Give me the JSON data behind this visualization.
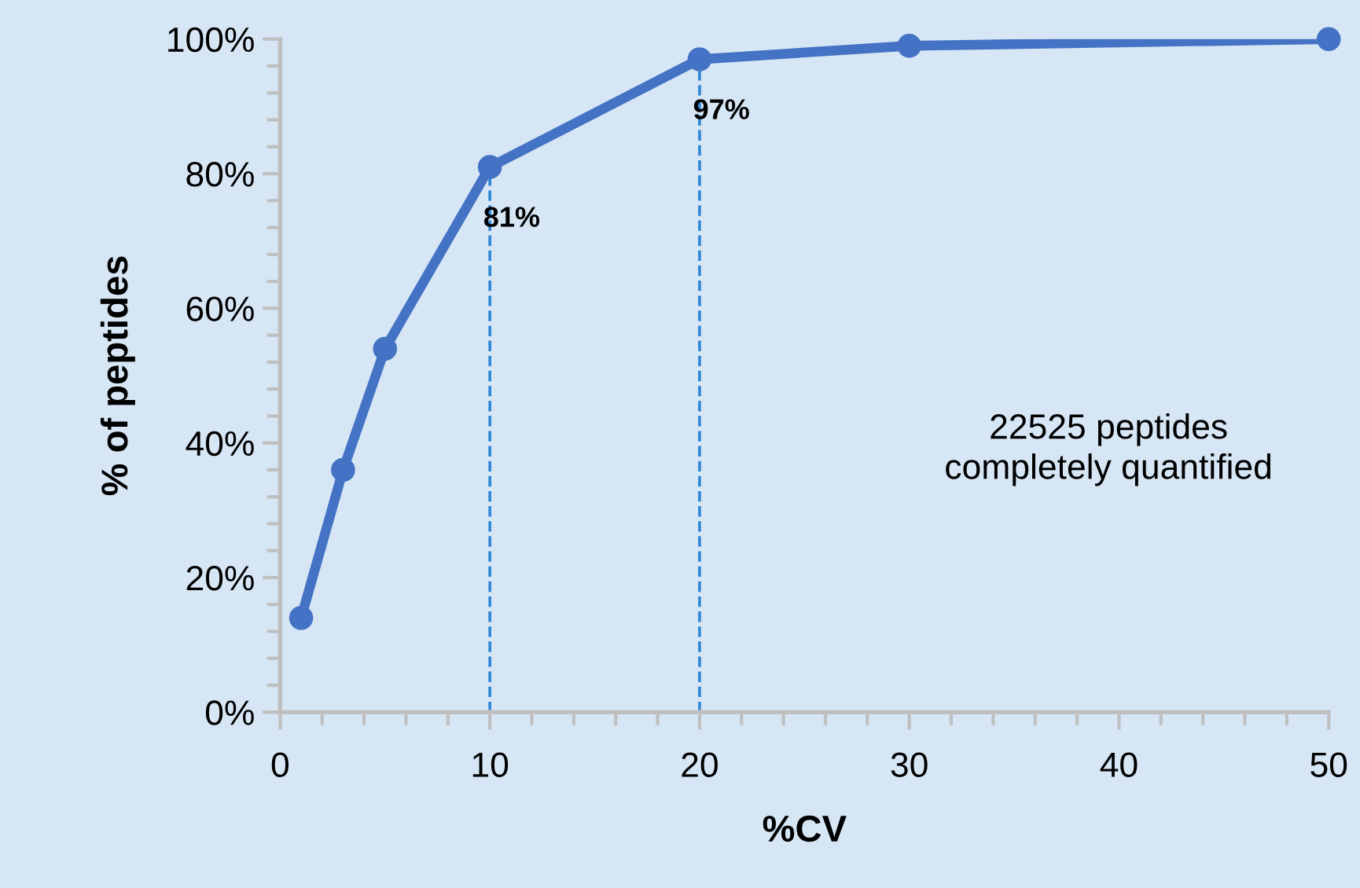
{
  "chart_data": {
    "type": "line",
    "xlabel": "%CV",
    "ylabel": "% of peptides",
    "x": [
      1,
      3,
      5,
      10,
      20,
      30,
      50
    ],
    "series": [
      {
        "color": "#4472c4",
        "values": [
          14,
          36,
          54,
          81,
          97,
          99,
          100
        ]
      }
    ],
    "xlim": [
      0,
      50
    ],
    "xticks": [
      0,
      10,
      20,
      30,
      40,
      50
    ],
    "ylim": [
      0,
      100
    ],
    "yticks": [
      {
        "value": 0,
        "label": "0%"
      },
      {
        "value": 20,
        "label": "20%"
      },
      {
        "value": 40,
        "label": "40%"
      },
      {
        "value": 60,
        "label": "60%"
      },
      {
        "value": 80,
        "label": "80%"
      },
      {
        "value": 100,
        "label": "100%"
      }
    ],
    "ref_lines": [
      {
        "axis": "x",
        "value": 10,
        "color": "#2e86d6",
        "line_style": "dashed"
      },
      {
        "axis": "x",
        "value": 20,
        "color": "#2e86d6",
        "line_style": "dashed"
      }
    ],
    "annotations": [
      {
        "text": "81%",
        "x": 10,
        "y": 81
      },
      {
        "text": "97%",
        "x": 20,
        "y": 97
      },
      "22525 peptides\ncompletely quantified"
    ],
    "marker": "circle",
    "line_style": "solid",
    "grid": false,
    "legend": false
  }
}
